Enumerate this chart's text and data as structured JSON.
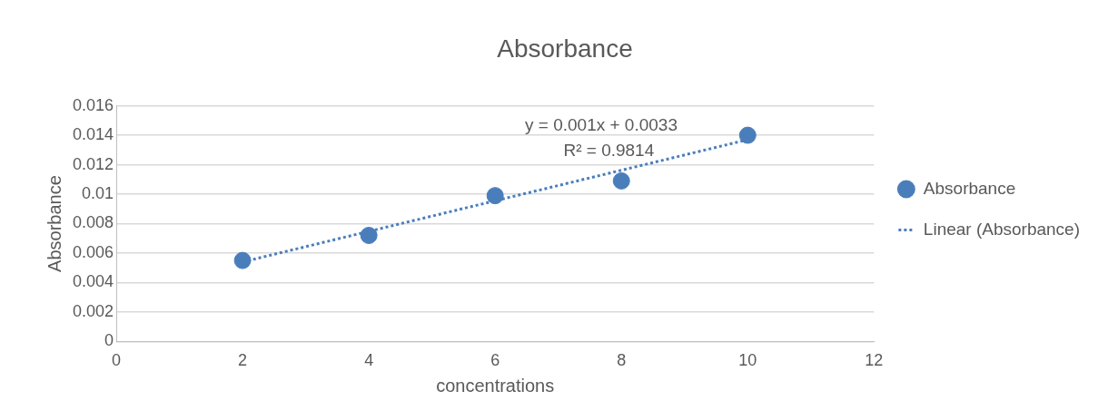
{
  "chart_data": {
    "type": "scatter",
    "title": "Absorbance",
    "xlabel": "concentrations",
    "ylabel": "Absorbance",
    "xlim": [
      0,
      12
    ],
    "xticks": [
      0,
      2,
      4,
      6,
      8,
      10,
      12
    ],
    "ylim": [
      0,
      0.016
    ],
    "yticks": [
      0,
      0.002,
      0.004,
      0.006,
      0.008,
      0.01,
      0.012,
      0.014,
      0.016
    ],
    "grid": "y",
    "legend": "right",
    "marker": "circle",
    "series": [
      {
        "name": "Absorbance",
        "color": "#4a7ebb",
        "x": [
          2,
          4,
          6,
          8,
          10
        ],
        "values": [
          0.0055,
          0.0072,
          0.0099,
          0.0109,
          0.014
        ]
      },
      {
        "name": "Linear (Absorbance)",
        "type": "line",
        "line_style": "dotted",
        "marker": "none",
        "color": "#4a7ebb",
        "x": [
          2,
          10
        ],
        "values": [
          0.0054,
          0.0137
        ]
      }
    ],
    "annotations": [
      "y = 0.001x + 0.0033",
      "R² = 0.9814"
    ]
  }
}
